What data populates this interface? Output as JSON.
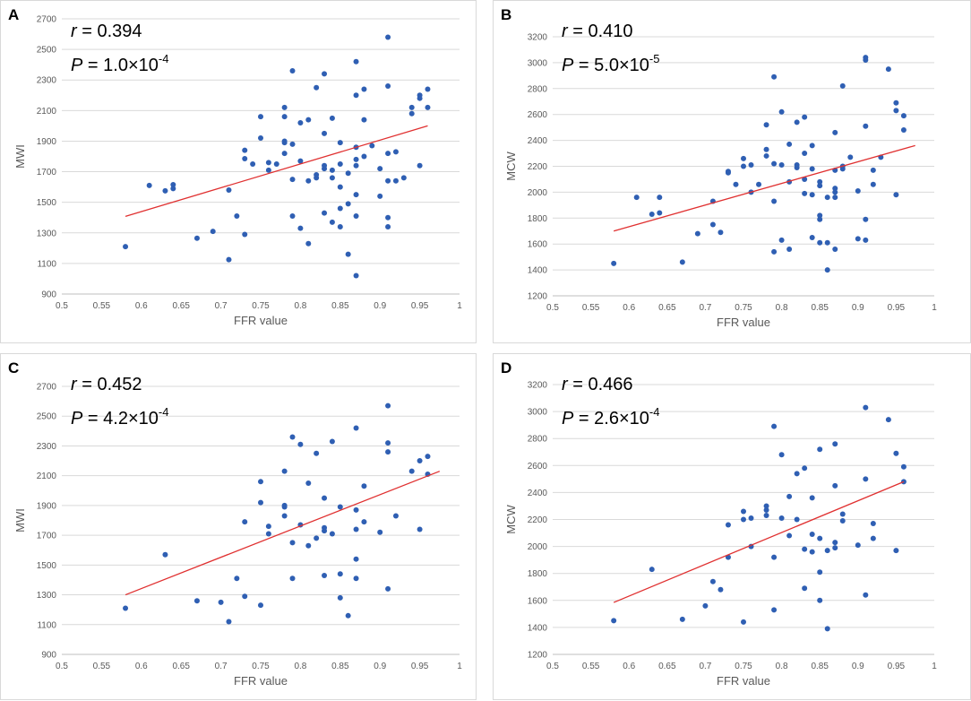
{
  "chart_data": [
    {
      "panel": "A",
      "type": "scatter",
      "xlabel": "FFR value",
      "ylabel": "MWI",
      "xlim": [
        0.5,
        1
      ],
      "ylim": [
        900,
        2700
      ],
      "xticks": [
        "0.5",
        "0.55",
        "0.6",
        "0.65",
        "0.7",
        "0.75",
        "0.8",
        "0.85",
        "0.9",
        "0.95",
        "1"
      ],
      "yticks": [
        "900",
        "1100",
        "1300",
        "1500",
        "1700",
        "1900",
        "2100",
        "2300",
        "2500",
        "2700"
      ],
      "r_label": "r",
      "r_value": "= 0.394",
      "p_label": "P",
      "p_value": "= 1.0×10",
      "p_exp": "-4",
      "trendline": {
        "x": [
          0.58,
          0.96
        ],
        "y": [
          1408,
          2000
        ]
      },
      "points": {
        "x": [
          0.58,
          0.61,
          0.63,
          0.64,
          0.64,
          0.67,
          0.69,
          0.71,
          0.71,
          0.72,
          0.73,
          0.73,
          0.73,
          0.74,
          0.75,
          0.75,
          0.76,
          0.76,
          0.77,
          0.78,
          0.78,
          0.78,
          0.78,
          0.78,
          0.79,
          0.79,
          0.79,
          0.79,
          0.8,
          0.8,
          0.8,
          0.81,
          0.81,
          0.81,
          0.82,
          0.82,
          0.82,
          0.83,
          0.83,
          0.83,
          0.83,
          0.83,
          0.84,
          0.84,
          0.84,
          0.84,
          0.85,
          0.85,
          0.85,
          0.85,
          0.85,
          0.86,
          0.86,
          0.86,
          0.87,
          0.87,
          0.87,
          0.87,
          0.87,
          0.87,
          0.87,
          0.87,
          0.88,
          0.88,
          0.88,
          0.89,
          0.9,
          0.9,
          0.91,
          0.91,
          0.91,
          0.91,
          0.91,
          0.91,
          0.92,
          0.92,
          0.93,
          0.94,
          0.94,
          0.95,
          0.95,
          0.95,
          0.96,
          0.96
        ],
        "y": [
          1210,
          1610,
          1575,
          1590,
          1615,
          1265,
          1310,
          1125,
          1580,
          1410,
          1785,
          1840,
          1290,
          1750,
          1920,
          2060,
          1710,
          1760,
          1750,
          1820,
          1890,
          1900,
          2060,
          2120,
          1410,
          1650,
          1880,
          2360,
          1330,
          1770,
          2020,
          1230,
          1640,
          2040,
          2250,
          1660,
          1680,
          1430,
          1720,
          1740,
          1950,
          2340,
          1370,
          1660,
          1710,
          2050,
          1340,
          1460,
          1600,
          1750,
          1890,
          1160,
          1490,
          1690,
          1020,
          1410,
          1550,
          1740,
          1780,
          1860,
          2200,
          2420,
          1800,
          2040,
          2240,
          1870,
          1540,
          1720,
          1340,
          1400,
          1640,
          1820,
          2260,
          2580,
          1640,
          1830,
          1660,
          2080,
          2120,
          1740,
          2180,
          2200,
          2120,
          2240
        ]
      }
    },
    {
      "panel": "B",
      "type": "scatter",
      "xlabel": "FFR value",
      "ylabel": "MCW",
      "xlim": [
        0.5,
        1
      ],
      "ylim": [
        1200,
        3200
      ],
      "xticks": [
        "0.5",
        "0.55",
        "0.6",
        "0.65",
        "0.7",
        "0.75",
        "0.8",
        "0.85",
        "0.9",
        "0.95",
        "1"
      ],
      "yticks": [
        "1200",
        "1400",
        "1600",
        "1800",
        "2000",
        "2200",
        "2400",
        "2600",
        "2800",
        "3000",
        "3200"
      ],
      "r_label": "r",
      "r_value": "= 0.410",
      "p_label": "P",
      "p_value": "= 5.0×10",
      "p_exp": "-5",
      "trendline": {
        "x": [
          0.58,
          0.975
        ],
        "y": [
          1700,
          2360
        ]
      },
      "points": {
        "x": [
          0.58,
          0.61,
          0.63,
          0.64,
          0.64,
          0.67,
          0.69,
          0.71,
          0.71,
          0.72,
          0.73,
          0.73,
          0.74,
          0.75,
          0.75,
          0.76,
          0.76,
          0.77,
          0.78,
          0.78,
          0.78,
          0.79,
          0.79,
          0.79,
          0.79,
          0.8,
          0.8,
          0.8,
          0.81,
          0.81,
          0.81,
          0.82,
          0.82,
          0.82,
          0.83,
          0.83,
          0.83,
          0.83,
          0.84,
          0.84,
          0.84,
          0.84,
          0.85,
          0.85,
          0.85,
          0.85,
          0.85,
          0.86,
          0.86,
          0.86,
          0.87,
          0.87,
          0.87,
          0.87,
          0.87,
          0.87,
          0.88,
          0.88,
          0.88,
          0.89,
          0.9,
          0.9,
          0.91,
          0.91,
          0.91,
          0.91,
          0.91,
          0.92,
          0.92,
          0.93,
          0.94,
          0.95,
          0.95,
          0.95,
          0.96,
          0.96
        ],
        "y": [
          1450,
          1960,
          1830,
          1840,
          1960,
          1460,
          1680,
          1930,
          1750,
          1690,
          2150,
          2160,
          2060,
          2200,
          2260,
          2000,
          2210,
          2060,
          2280,
          2330,
          2520,
          1540,
          1930,
          2220,
          2890,
          1630,
          2210,
          2620,
          1560,
          2080,
          2370,
          2190,
          2210,
          2540,
          1990,
          2100,
          2300,
          2580,
          1650,
          1980,
          2180,
          2360,
          1610,
          1790,
          1820,
          2050,
          2080,
          1400,
          1610,
          1960,
          1560,
          1960,
          2000,
          2030,
          2170,
          2460,
          2180,
          2200,
          2820,
          2270,
          1640,
          2010,
          1630,
          1790,
          2510,
          3020,
          3040,
          2060,
          2170,
          2270,
          2950,
          1980,
          2630,
          2690,
          2480,
          2590
        ]
      }
    },
    {
      "panel": "C",
      "type": "scatter",
      "xlabel": "FFR value",
      "ylabel": "MWI",
      "xlim": [
        0.5,
        1
      ],
      "ylim": [
        900,
        2700
      ],
      "xticks": [
        "0.5",
        "0.55",
        "0.6",
        "0.65",
        "0.7",
        "0.75",
        "0.8",
        "0.85",
        "0.9",
        "0.95",
        "1"
      ],
      "yticks": [
        "900",
        "1100",
        "1300",
        "1500",
        "1700",
        "1900",
        "2100",
        "2300",
        "2500",
        "2700"
      ],
      "r_label": "r",
      "r_value": "= 0.452",
      "p_label": "P",
      "p_value": "= 4.2×10",
      "p_exp": "-4",
      "trendline": {
        "x": [
          0.58,
          0.975
        ],
        "y": [
          1300,
          2130
        ]
      },
      "points": {
        "x": [
          0.58,
          0.63,
          0.67,
          0.7,
          0.71,
          0.72,
          0.73,
          0.73,
          0.75,
          0.75,
          0.75,
          0.76,
          0.76,
          0.78,
          0.78,
          0.78,
          0.78,
          0.79,
          0.79,
          0.79,
          0.8,
          0.8,
          0.81,
          0.81,
          0.82,
          0.82,
          0.83,
          0.83,
          0.83,
          0.83,
          0.84,
          0.84,
          0.85,
          0.85,
          0.85,
          0.86,
          0.87,
          0.87,
          0.87,
          0.87,
          0.87,
          0.88,
          0.88,
          0.9,
          0.91,
          0.91,
          0.91,
          0.91,
          0.92,
          0.94,
          0.95,
          0.95,
          0.96,
          0.96
        ],
        "y": [
          1210,
          1570,
          1260,
          1250,
          1120,
          1410,
          1290,
          1790,
          1230,
          1920,
          2060,
          1710,
          1760,
          1830,
          1890,
          1900,
          2130,
          1410,
          1650,
          2360,
          1770,
          2310,
          1630,
          2050,
          1680,
          2250,
          1430,
          1730,
          1750,
          1950,
          1710,
          2330,
          1280,
          1440,
          1890,
          1160,
          1410,
          1540,
          1740,
          1870,
          2420,
          1790,
          2030,
          1720,
          1340,
          2260,
          2320,
          2570,
          1830,
          2130,
          1740,
          2200,
          2110,
          2230
        ]
      }
    },
    {
      "panel": "D",
      "type": "scatter",
      "xlabel": "FFR value",
      "ylabel": "MCW",
      "xlim": [
        0.5,
        1
      ],
      "ylim": [
        1200,
        3200
      ],
      "xticks": [
        "0.5",
        "0.55",
        "0.6",
        "0.65",
        "0.7",
        "0.75",
        "0.8",
        "0.85",
        "0.9",
        "0.95",
        "1"
      ],
      "yticks": [
        "1200",
        "1400",
        "1600",
        "1800",
        "2000",
        "2200",
        "2400",
        "2600",
        "2800",
        "3000",
        "3200"
      ],
      "r_label": "r",
      "r_value": "= 0.466",
      "p_label": "P",
      "p_value": "= 2.6×10",
      "p_exp": "-4",
      "trendline": {
        "x": [
          0.58,
          0.96
        ],
        "y": [
          1585,
          2480
        ]
      },
      "points": {
        "x": [
          0.58,
          0.63,
          0.67,
          0.7,
          0.71,
          0.72,
          0.73,
          0.73,
          0.75,
          0.75,
          0.75,
          0.76,
          0.76,
          0.78,
          0.78,
          0.78,
          0.79,
          0.79,
          0.79,
          0.8,
          0.8,
          0.81,
          0.81,
          0.82,
          0.82,
          0.83,
          0.83,
          0.83,
          0.84,
          0.84,
          0.84,
          0.85,
          0.85,
          0.85,
          0.85,
          0.86,
          0.86,
          0.87,
          0.87,
          0.87,
          0.87,
          0.88,
          0.88,
          0.9,
          0.91,
          0.91,
          0.91,
          0.92,
          0.92,
          0.94,
          0.95,
          0.95,
          0.96,
          0.96
        ],
        "y": [
          1450,
          1830,
          1460,
          1560,
          1740,
          1680,
          1920,
          2160,
          1440,
          2200,
          2260,
          2000,
          2210,
          2270,
          2300,
          2230,
          1530,
          1920,
          2890,
          2210,
          2680,
          2080,
          2370,
          2200,
          2540,
          1690,
          1980,
          2580,
          1960,
          2090,
          2360,
          1600,
          1810,
          2060,
          2720,
          1390,
          1970,
          1990,
          2030,
          2450,
          2760,
          2190,
          2240,
          2010,
          1640,
          2500,
          3030,
          2060,
          2170,
          2940,
          1970,
          2690,
          2480,
          2590
        ]
      }
    }
  ]
}
